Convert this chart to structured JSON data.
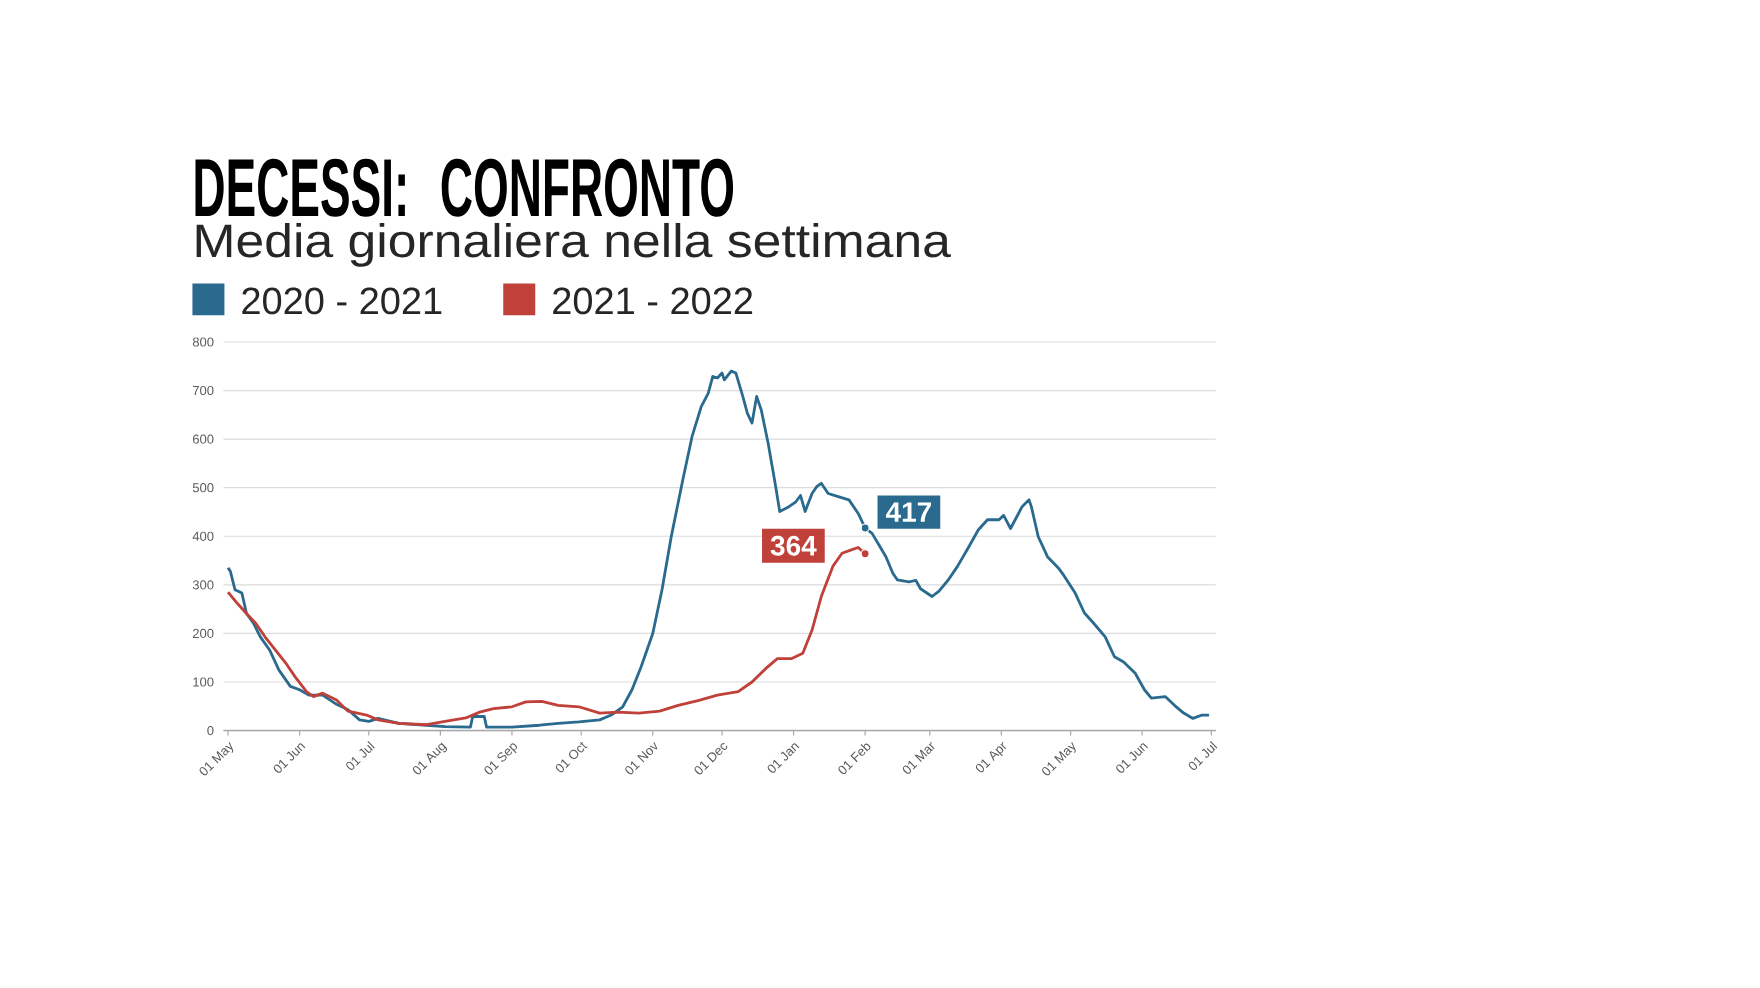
{
  "chart_data": {
    "type": "line",
    "title": "DECESSI: CONFRONTO",
    "subtitle": "Media giornaliera nella settimana",
    "xlim": [
      "2020-04-29",
      "2021-07-03"
    ],
    "xticks": [
      {
        "value": "2020-05-01",
        "label": "01 May"
      },
      {
        "value": "2020-06-01",
        "label": "01 Jun"
      },
      {
        "value": "2020-07-01",
        "label": "01 Jul"
      },
      {
        "value": "2020-08-01",
        "label": "01 Aug"
      },
      {
        "value": "2020-09-01",
        "label": "01 Sep"
      },
      {
        "value": "2020-10-01",
        "label": "01 Oct"
      },
      {
        "value": "2020-11-01",
        "label": "01 Nov"
      },
      {
        "value": "2020-12-01",
        "label": "01 Dec"
      },
      {
        "value": "2021-01-01",
        "label": "01 Jan"
      },
      {
        "value": "2021-02-01",
        "label": "01 Feb"
      },
      {
        "value": "2021-03-01",
        "label": "01 Mar"
      },
      {
        "value": "2021-04-01",
        "label": "01 Apr"
      },
      {
        "value": "2021-05-01",
        "label": "01 May"
      },
      {
        "value": "2021-06-01",
        "label": "01 Jun"
      },
      {
        "value": "2021-07-01",
        "label": "01 Jul"
      }
    ],
    "ylim": [
      0,
      800
    ],
    "yticks": [
      0,
      100,
      200,
      300,
      400,
      500,
      600,
      700,
      800
    ],
    "grid": "y",
    "legend": "top left",
    "series": [
      {
        "name": "2020 - 2021",
        "color": "#2a6a8e",
        "x": [
          "2020-05-01",
          "2020-05-02",
          "2020-05-04",
          "2020-05-07",
          "2020-05-09",
          "2020-05-12",
          "2020-05-15",
          "2020-05-19",
          "2020-05-23",
          "2020-05-28",
          "2020-06-01",
          "2020-06-05",
          "2020-06-11",
          "2020-06-17",
          "2020-06-22",
          "2020-06-27",
          "2020-07-01",
          "2020-07-05",
          "2020-07-14",
          "2020-07-26",
          "2020-08-03",
          "2020-08-14",
          "2020-08-15",
          "2020-08-20",
          "2020-08-21",
          "2020-09-01",
          "2020-09-13",
          "2020-09-21",
          "2020-09-30",
          "2020-10-09",
          "2020-10-14",
          "2020-10-19",
          "2020-10-23",
          "2020-10-27",
          "2020-11-01",
          "2020-11-05",
          "2020-11-09",
          "2020-11-14",
          "2020-11-18",
          "2020-11-22",
          "2020-11-25",
          "2020-11-27",
          "2020-11-29",
          "2020-12-01",
          "2020-12-02",
          "2020-12-05",
          "2020-12-07",
          "2020-12-10",
          "2020-12-12",
          "2020-12-14",
          "2020-12-16",
          "2020-12-18",
          "2020-12-21",
          "2020-12-24",
          "2020-12-26",
          "2020-12-30",
          "2021-01-02",
          "2021-01-04",
          "2021-01-06",
          "2021-01-09",
          "2021-01-11",
          "2021-01-13",
          "2021-01-16",
          "2021-01-20",
          "2021-01-25",
          "2021-01-29",
          "2021-02-01",
          "2021-02-04",
          "2021-02-07",
          "2021-02-10",
          "2021-02-13",
          "2021-02-15",
          "2021-02-20",
          "2021-02-23",
          "2021-02-25",
          "2021-03-02",
          "2021-03-05",
          "2021-03-09",
          "2021-03-13",
          "2021-03-18",
          "2021-03-22",
          "2021-03-26",
          "2021-03-31",
          "2021-04-02",
          "2021-04-05",
          "2021-04-07",
          "2021-04-10",
          "2021-04-13",
          "2021-04-14",
          "2021-04-17",
          "2021-04-21",
          "2021-04-26",
          "2021-04-28",
          "2021-05-03",
          "2021-05-07",
          "2021-05-11",
          "2021-05-16",
          "2021-05-20",
          "2021-05-24",
          "2021-05-29",
          "2021-06-02",
          "2021-06-05",
          "2021-06-11",
          "2021-06-15",
          "2021-06-19",
          "2021-06-23",
          "2021-06-27",
          "2021-06-30"
        ],
        "values": [
          335,
          328,
          290,
          283,
          241,
          221,
          193,
          166,
          125,
          91,
          84,
          73,
          73,
          54,
          43,
          22,
          19,
          25,
          15,
          11,
          8,
          7,
          29,
          29,
          7,
          7,
          11,
          15,
          18,
          22,
          32,
          49,
          84,
          132,
          200,
          290,
          399,
          516,
          605,
          667,
          694,
          729,
          726,
          736,
          722,
          740,
          736,
          688,
          653,
          633,
          688,
          660,
          591,
          509,
          451,
          461,
          471,
          484,
          451,
          488,
          502,
          509,
          488,
          482,
          475,
          447,
          417,
          406,
          382,
          358,
          324,
          310,
          306,
          309,
          292,
          276,
          287,
          310,
          338,
          379,
          413,
          434,
          434,
          443,
          416,
          434,
          461,
          475,
          461,
          399,
          358,
          333,
          320,
          283,
          242,
          221,
          193,
          152,
          141,
          118,
          84,
          67,
          70,
          52,
          36,
          25,
          32,
          32
        ],
        "value_labels": [
          null,
          null,
          null,
          null,
          null,
          null,
          null,
          null,
          null,
          null,
          null,
          null,
          null,
          null,
          null,
          null,
          null,
          null,
          null,
          null,
          null,
          null,
          null,
          null,
          null,
          null,
          null,
          null,
          null,
          null,
          null,
          null,
          null,
          null,
          null,
          null,
          null,
          null,
          null,
          null,
          null,
          null,
          null,
          null,
          null,
          null,
          null,
          null,
          null,
          null,
          null,
          null,
          null,
          null,
          null,
          null,
          null,
          null,
          null,
          null,
          null,
          null,
          null,
          null,
          null,
          null,
          "417",
          null,
          null,
          null,
          null,
          null,
          null,
          null,
          null,
          null,
          null,
          null,
          null,
          null,
          null,
          null,
          null,
          null,
          null,
          null,
          null,
          null,
          null,
          null,
          null,
          null,
          null,
          null,
          null,
          null,
          null,
          null,
          null,
          null,
          null,
          null,
          null,
          null,
          null,
          null,
          null,
          null
        ]
      },
      {
        "name": "2021 - 2022",
        "color": "#c0403a",
        "x": [
          "2020-05-01",
          "2020-05-05",
          "2020-05-09",
          "2020-05-13",
          "2020-05-17",
          "2020-05-22",
          "2020-05-26",
          "2020-05-30",
          "2020-06-04",
          "2020-06-07",
          "2020-06-11",
          "2020-06-17",
          "2020-06-22",
          "2020-06-30",
          "2020-07-05",
          "2020-07-14",
          "2020-07-26",
          "2020-08-03",
          "2020-08-12",
          "2020-08-18",
          "2020-08-24",
          "2020-09-01",
          "2020-09-07",
          "2020-09-14",
          "2020-09-21",
          "2020-09-30",
          "2020-10-09",
          "2020-10-17",
          "2020-10-26",
          "2020-11-04",
          "2020-11-12",
          "2020-11-21",
          "2020-11-29",
          "2020-12-08",
          "2020-12-14",
          "2020-12-20",
          "2020-12-25",
          "2020-12-31",
          "2021-01-05",
          "2021-01-09",
          "2021-01-13",
          "2021-01-18",
          "2021-01-22",
          "2021-01-26",
          "2021-01-29",
          "2021-02-01"
        ],
        "values": [
          285,
          262,
          241,
          221,
          193,
          163,
          139,
          111,
          80,
          70,
          77,
          63,
          40,
          32,
          22,
          15,
          12,
          19,
          26,
          38,
          45,
          49,
          59,
          60,
          52,
          49,
          36,
          38,
          36,
          40,
          52,
          62,
          73,
          80,
          100,
          128,
          148,
          148,
          159,
          207,
          276,
          338,
          365,
          372,
          377,
          364
        ],
        "value_labels": [
          null,
          null,
          null,
          null,
          null,
          null,
          null,
          null,
          null,
          null,
          null,
          null,
          null,
          null,
          null,
          null,
          null,
          null,
          null,
          null,
          null,
          null,
          null,
          null,
          null,
          null,
          null,
          null,
          null,
          null,
          null,
          null,
          null,
          null,
          null,
          null,
          null,
          null,
          null,
          null,
          null,
          null,
          null,
          null,
          null,
          "364"
        ]
      }
    ]
  }
}
